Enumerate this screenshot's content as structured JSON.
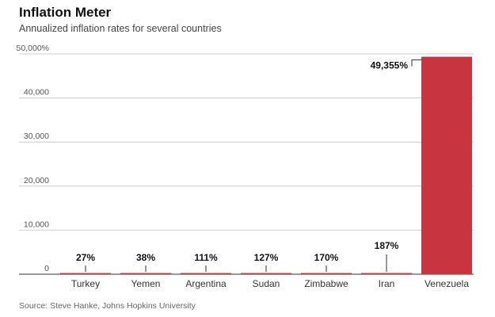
{
  "title": "Inflation Meter",
  "subtitle": "Annualized inflation rates for several countries",
  "source": "Source: Steve Hanke, Johns Hopkins University",
  "colors": {
    "bar": "#c8343f",
    "grid": "#cccccc",
    "axis": "#333333"
  },
  "chart_data": {
    "type": "bar",
    "title": "Inflation Meter",
    "subtitle": "Annualized inflation rates for several countries",
    "categories": [
      "Turkey",
      "Yemen",
      "Argentina",
      "Sudan",
      "Zimbabwe",
      "Iran",
      "Venezuela"
    ],
    "values": [
      27,
      38,
      111,
      127,
      170,
      187,
      49355
    ],
    "data_labels": [
      "27%",
      "38%",
      "111%",
      "127%",
      "170%",
      "187%",
      "49,355%"
    ],
    "ylim": [
      0,
      50000
    ],
    "yticks": [
      0,
      10000,
      20000,
      30000,
      40000,
      50000
    ],
    "ytick_labels": [
      "0",
      "10,000",
      "20,000",
      "30,000",
      "40,000",
      "50,000%"
    ],
    "xlabel": "",
    "ylabel": "",
    "grid": true,
    "legend": "none"
  }
}
